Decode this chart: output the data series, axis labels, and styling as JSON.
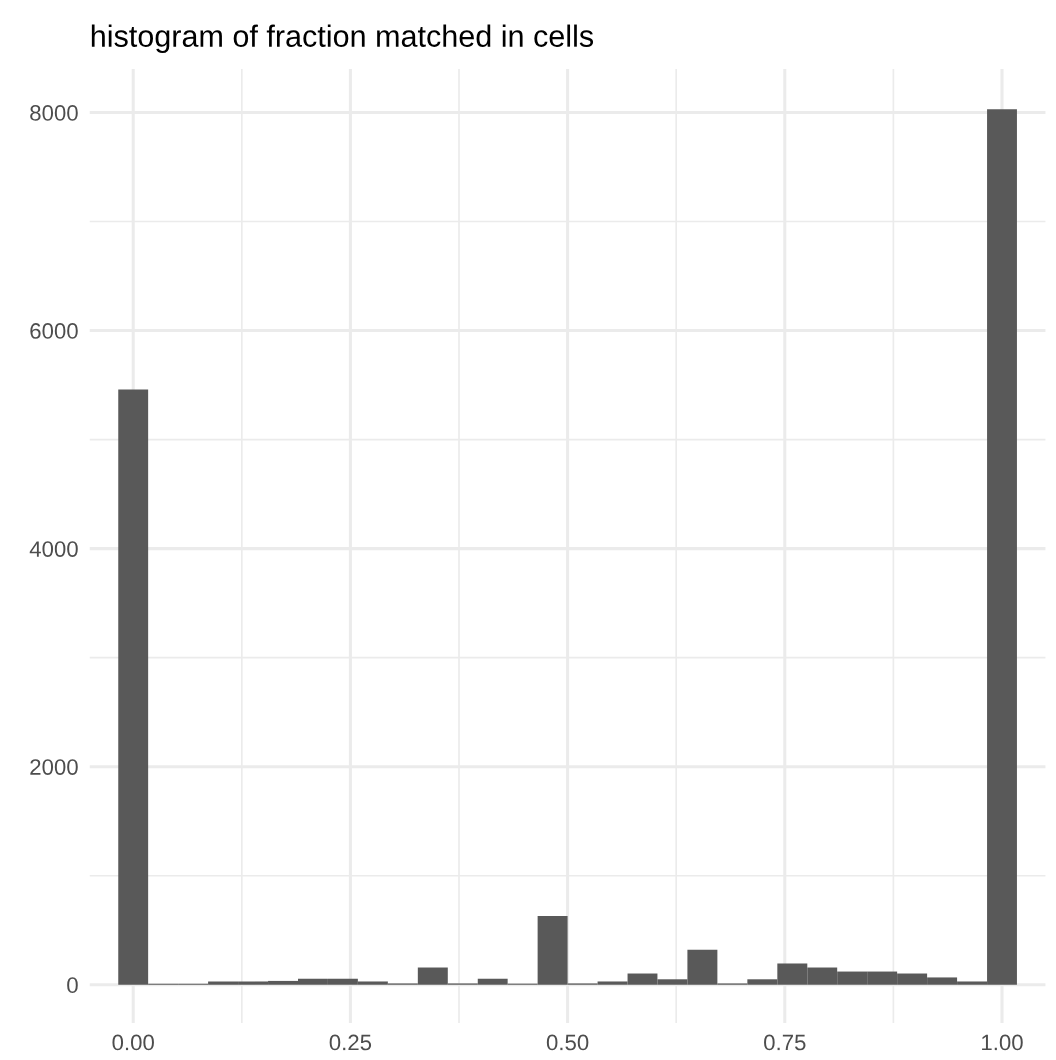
{
  "chart_data": {
    "type": "histogram",
    "title": "histogram of fraction matched in cells",
    "bins": [
      -0.0172,
      0.0172,
      0.0517,
      0.0862,
      0.1207,
      0.1552,
      0.1897,
      0.2241,
      0.2586,
      0.2931,
      0.3276,
      0.3621,
      0.3966,
      0.431,
      0.4655,
      0.5,
      0.5345,
      0.569,
      0.6034,
      0.6379,
      0.6724,
      0.7069,
      0.7414,
      0.7759,
      0.8103,
      0.8448,
      0.8793,
      0.9138,
      0.9483,
      0.9828,
      1.0172
    ],
    "values": [
      5460,
      10,
      10,
      30,
      30,
      35,
      55,
      55,
      30,
      12,
      158,
      12,
      55,
      10,
      630,
      12,
      30,
      103,
      50,
      320,
      12,
      50,
      195,
      158,
      121,
      121,
      103,
      67,
      30,
      8030
    ],
    "color": "#595959",
    "xlim": [
      -0.05,
      1.05
    ],
    "xticks": [
      {
        "value": 0,
        "label": "0.00"
      },
      {
        "value": 0.25,
        "label": "0.25"
      },
      {
        "value": 0.5,
        "label": "0.50"
      },
      {
        "value": 0.75,
        "label": "0.75"
      },
      {
        "value": 1,
        "label": "1.00"
      }
    ],
    "ylim": [
      -350,
      8400
    ],
    "yticks": [
      0,
      2000,
      4000,
      6000,
      8000
    ],
    "grid": true
  }
}
